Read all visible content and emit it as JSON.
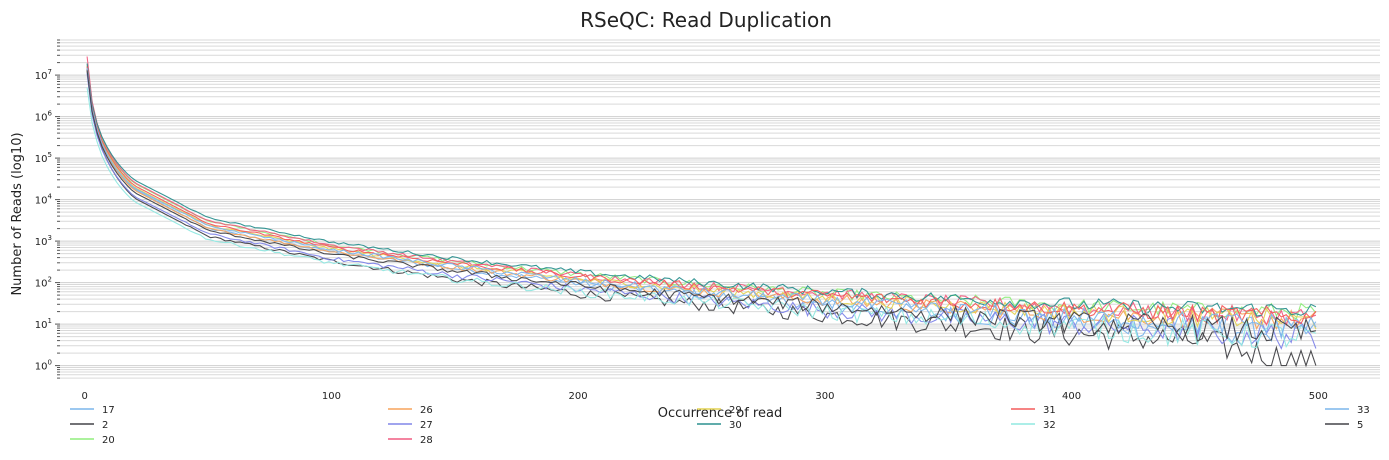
{
  "chart_data": {
    "type": "line",
    "title": "RSeQC: Read Duplication",
    "xlabel": "Occurrence of read",
    "ylabel": "Number of Reads (log10)",
    "xlim": [
      -10,
      525
    ],
    "ylim": [
      0.45,
      70000000
    ],
    "y_scale": "log",
    "x_ticks": [
      0,
      100,
      200,
      300,
      400,
      500
    ],
    "y_ticks": [
      {
        "base": "10",
        "exp": "0",
        "value": 1
      },
      {
        "base": "10",
        "exp": "1",
        "value": 10
      },
      {
        "base": "10",
        "exp": "2",
        "value": 100
      },
      {
        "base": "10",
        "exp": "3",
        "value": 1000
      },
      {
        "base": "10",
        "exp": "4",
        "value": 10000
      },
      {
        "base": "10",
        "exp": "5",
        "value": 100000
      },
      {
        "base": "10",
        "exp": "6",
        "value": 1000000
      },
      {
        "base": "10",
        "exp": "7",
        "value": 10000000
      }
    ],
    "grid": true,
    "legend_position": "bottom",
    "series": [
      {
        "name": "17",
        "color": "#7cb5ec",
        "points": [
          [
            1,
            12000000
          ],
          [
            2,
            3000000
          ],
          [
            5,
            400000
          ],
          [
            10,
            90000
          ],
          [
            20,
            18000
          ],
          [
            50,
            2000
          ],
          [
            100,
            550
          ],
          [
            150,
            220
          ],
          [
            200,
            95
          ],
          [
            250,
            50
          ],
          [
            300,
            28
          ],
          [
            350,
            17
          ],
          [
            400,
            11
          ],
          [
            450,
            8
          ],
          [
            500,
            6
          ]
        ]
      },
      {
        "name": "2",
        "color": "#434348",
        "points": [
          [
            1,
            14000000
          ],
          [
            2,
            3400000
          ],
          [
            5,
            380000
          ],
          [
            10,
            70000
          ],
          [
            20,
            11000
          ],
          [
            50,
            1300
          ],
          [
            100,
            330
          ],
          [
            150,
            120
          ],
          [
            200,
            55
          ],
          [
            250,
            30
          ],
          [
            300,
            17
          ],
          [
            350,
            10
          ],
          [
            400,
            6
          ],
          [
            450,
            4
          ],
          [
            500,
            1
          ]
        ]
      },
      {
        "name": "20",
        "color": "#90ed7d",
        "points": [
          [
            1,
            16000000
          ],
          [
            2,
            4000000
          ],
          [
            5,
            600000
          ],
          [
            10,
            130000
          ],
          [
            20,
            25000
          ],
          [
            50,
            3000
          ],
          [
            100,
            800
          ],
          [
            150,
            330
          ],
          [
            200,
            160
          ],
          [
            250,
            90
          ],
          [
            300,
            55
          ],
          [
            350,
            38
          ],
          [
            400,
            28
          ],
          [
            450,
            22
          ],
          [
            500,
            20
          ]
        ]
      },
      {
        "name": "26",
        "color": "#f7a35c",
        "points": [
          [
            1,
            13000000
          ],
          [
            2,
            3300000
          ],
          [
            5,
            450000
          ],
          [
            10,
            95000
          ],
          [
            20,
            17000
          ],
          [
            50,
            2000
          ],
          [
            100,
            560
          ],
          [
            150,
            230
          ],
          [
            200,
            110
          ],
          [
            250,
            60
          ],
          [
            300,
            38
          ],
          [
            350,
            25
          ],
          [
            400,
            18
          ],
          [
            450,
            14
          ],
          [
            500,
            12
          ]
        ]
      },
      {
        "name": "27",
        "color": "#8085e9",
        "points": [
          [
            1,
            11000000
          ],
          [
            2,
            2800000
          ],
          [
            5,
            350000
          ],
          [
            10,
            70000
          ],
          [
            20,
            12000
          ],
          [
            50,
            1500
          ],
          [
            100,
            380
          ],
          [
            150,
            150
          ],
          [
            200,
            70
          ],
          [
            250,
            38
          ],
          [
            300,
            22
          ],
          [
            350,
            14
          ],
          [
            400,
            10
          ],
          [
            450,
            7
          ],
          [
            500,
            5
          ]
        ]
      },
      {
        "name": "28",
        "color": "#f15c80",
        "points": [
          [
            1,
            28000000
          ],
          [
            2,
            6000000
          ],
          [
            5,
            700000
          ],
          [
            10,
            140000
          ],
          [
            20,
            26000
          ],
          [
            50,
            3100
          ],
          [
            100,
            800
          ],
          [
            150,
            320
          ],
          [
            200,
            150
          ],
          [
            250,
            85
          ],
          [
            300,
            55
          ],
          [
            350,
            35
          ],
          [
            400,
            25
          ],
          [
            450,
            18
          ],
          [
            500,
            15
          ]
        ]
      },
      {
        "name": "29",
        "color": "#e4d354",
        "points": [
          [
            1,
            17000000
          ],
          [
            2,
            4200000
          ],
          [
            5,
            550000
          ],
          [
            10,
            110000
          ],
          [
            20,
            20000
          ],
          [
            50,
            2400
          ],
          [
            100,
            650
          ],
          [
            150,
            260
          ],
          [
            200,
            120
          ],
          [
            250,
            68
          ],
          [
            300,
            42
          ],
          [
            350,
            28
          ],
          [
            400,
            20
          ],
          [
            450,
            15
          ],
          [
            500,
            12
          ]
        ]
      },
      {
        "name": "30",
        "color": "#2b908f",
        "points": [
          [
            1,
            19000000
          ],
          [
            2,
            4600000
          ],
          [
            5,
            680000
          ],
          [
            10,
            150000
          ],
          [
            20,
            30000
          ],
          [
            50,
            3600
          ],
          [
            100,
            950
          ],
          [
            150,
            380
          ],
          [
            200,
            180
          ],
          [
            250,
            100
          ],
          [
            300,
            62
          ],
          [
            350,
            42
          ],
          [
            400,
            30
          ],
          [
            450,
            24
          ],
          [
            500,
            22
          ]
        ]
      },
      {
        "name": "31",
        "color": "#f45b5b",
        "points": [
          [
            1,
            16000000
          ],
          [
            2,
            4000000
          ],
          [
            5,
            560000
          ],
          [
            10,
            120000
          ],
          [
            20,
            22000
          ],
          [
            50,
            2600
          ],
          [
            100,
            700
          ],
          [
            150,
            290
          ],
          [
            200,
            140
          ],
          [
            250,
            80
          ],
          [
            300,
            50
          ],
          [
            350,
            33
          ],
          [
            400,
            24
          ],
          [
            450,
            18
          ],
          [
            500,
            15
          ]
        ]
      },
      {
        "name": "32",
        "color": "#91e8e1",
        "points": [
          [
            1,
            5000000
          ],
          [
            2,
            1600000
          ],
          [
            5,
            250000
          ],
          [
            10,
            50000
          ],
          [
            20,
            9000
          ],
          [
            50,
            1100
          ],
          [
            100,
            300
          ],
          [
            150,
            120
          ],
          [
            200,
            60
          ],
          [
            250,
            35
          ],
          [
            300,
            20
          ],
          [
            350,
            13
          ],
          [
            400,
            9
          ],
          [
            450,
            6
          ],
          [
            500,
            5
          ]
        ]
      },
      {
        "name": "33",
        "color": "#7cb5ec",
        "points": [
          [
            1,
            15000000
          ],
          [
            2,
            3800000
          ],
          [
            5,
            500000
          ],
          [
            10,
            100000
          ],
          [
            20,
            19000
          ],
          [
            50,
            2300
          ],
          [
            100,
            620
          ],
          [
            150,
            250
          ],
          [
            200,
            110
          ],
          [
            250,
            60
          ],
          [
            300,
            35
          ],
          [
            350,
            22
          ],
          [
            400,
            15
          ],
          [
            450,
            11
          ],
          [
            500,
            9
          ]
        ]
      },
      {
        "name": "5",
        "color": "#434348",
        "points": [
          [
            1,
            13000000
          ],
          [
            2,
            3200000
          ],
          [
            5,
            420000
          ],
          [
            10,
            85000
          ],
          [
            20,
            15000
          ],
          [
            50,
            1800
          ],
          [
            100,
            480
          ],
          [
            150,
            190
          ],
          [
            200,
            85
          ],
          [
            250,
            45
          ],
          [
            300,
            27
          ],
          [
            350,
            17
          ],
          [
            400,
            11
          ],
          [
            450,
            8
          ],
          [
            500,
            6
          ]
        ]
      }
    ],
    "legend_columns": [
      [
        "17",
        "2",
        "20"
      ],
      [
        "26",
        "27",
        "28"
      ],
      [
        "29",
        "30"
      ],
      [
        "31",
        "32"
      ],
      [
        "33",
        "5"
      ]
    ]
  }
}
